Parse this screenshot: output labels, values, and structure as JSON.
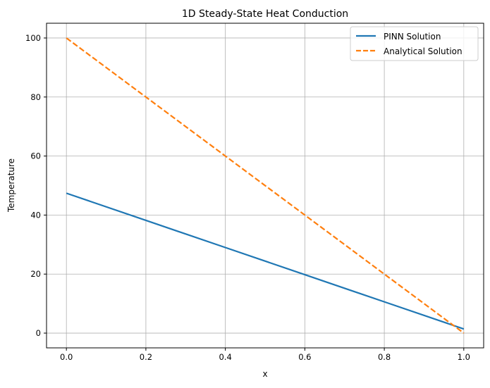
{
  "chart_data": {
    "type": "line",
    "title": "1D Steady-State Heat Conduction",
    "xlabel": "x",
    "ylabel": "Temperature",
    "xlim": [
      -0.05,
      1.05
    ],
    "ylim": [
      -5,
      105
    ],
    "xticks": [
      0.0,
      0.2,
      0.4,
      0.6,
      0.8,
      1.0
    ],
    "xtick_labels": [
      "0.0",
      "0.2",
      "0.4",
      "0.6",
      "0.8",
      "1.0"
    ],
    "yticks": [
      0,
      20,
      40,
      60,
      80,
      100
    ],
    "ytick_labels": [
      "0",
      "20",
      "40",
      "60",
      "80",
      "100"
    ],
    "grid": true,
    "legend_position": "top-right",
    "series": [
      {
        "name": "PINN Solution",
        "color": "#1f77b4",
        "style": "solid",
        "x": [
          0.0,
          0.2,
          0.4,
          0.6,
          0.8,
          1.0
        ],
        "y": [
          47.4,
          38.2,
          29.0,
          19.8,
          10.6,
          1.4
        ]
      },
      {
        "name": "Analytical Solution",
        "color": "#ff7f0e",
        "style": "dashed",
        "x": [
          0.0,
          0.2,
          0.4,
          0.6,
          0.8,
          1.0
        ],
        "y": [
          100,
          80,
          60,
          40,
          20,
          0
        ]
      }
    ]
  }
}
